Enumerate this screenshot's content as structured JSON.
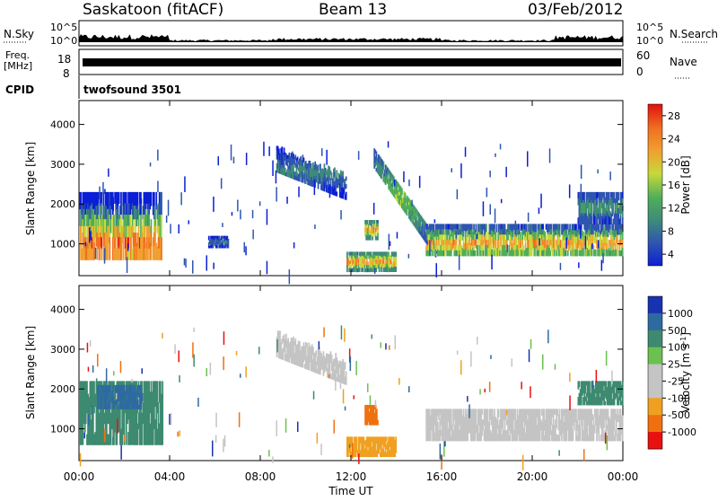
{
  "header": {
    "station": "Saskatoon (fitACF)",
    "beam": "Beam 13",
    "date": "03/Feb/2012"
  },
  "top_panels": {
    "nsky_label": "N.Sky",
    "nsky_ticks": [
      "10^5",
      "10^0"
    ],
    "nsearch_label": "N.Search",
    "freq_label_line1": "Freq.",
    "freq_label_line2": "[MHz]",
    "freq_ticks": [
      "18",
      "8"
    ],
    "nave_label": "Nave",
    "nave_ticks": [
      "60",
      "0"
    ],
    "cpid_label": "CPID",
    "cpid_value": "twofsound 3501"
  },
  "chart_data": [
    {
      "type": "heatmap",
      "name": "power",
      "ylabel": "Slant Range [km]",
      "xlabel": "Time UT",
      "x_ticks": [
        "00:00",
        "04:00",
        "08:00",
        "12:00",
        "16:00",
        "20:00",
        "00:00"
      ],
      "y_ticks": [
        "1000",
        "2000",
        "3000",
        "4000"
      ],
      "xlim_hours": [
        0,
        24
      ],
      "ylim_km": [
        200,
        4600
      ],
      "colorbar": {
        "label": "Power [dB]",
        "ticks": [
          "28",
          "24",
          "20",
          "16",
          "12",
          "8",
          "4"
        ]
      },
      "features": [
        {
          "t0": 0.0,
          "t1": 3.7,
          "r0": 600,
          "r1": 2300,
          "peak_dB": 28,
          "peak_range_km": 1000
        },
        {
          "t0": 5.7,
          "t1": 6.6,
          "r0": 900,
          "r1": 1200,
          "peak_dB": 8
        },
        {
          "t0": 8.7,
          "t1": 11.8,
          "r0": 2300,
          "r1": 3300,
          "peak_dB": 10
        },
        {
          "t0": 11.8,
          "t1": 14.0,
          "r0": 300,
          "r1": 800,
          "peak_dB": 24
        },
        {
          "t0": 12.6,
          "t1": 13.2,
          "r0": 1100,
          "r1": 1600,
          "peak_dB": 24
        },
        {
          "t0": 13.0,
          "t1": 15.8,
          "r0": 900,
          "r1": 3400,
          "peak_dB": 16
        },
        {
          "t0": 15.3,
          "t1": 24.0,
          "r0": 700,
          "r1": 1500,
          "peak_dB": 24,
          "peak_range_km": 1000
        },
        {
          "t0": 22.0,
          "t1": 24.0,
          "r0": 1500,
          "r1": 2300,
          "peak_dB": 12
        }
      ]
    },
    {
      "type": "heatmap",
      "name": "velocity",
      "ylabel": "Slant Range [km]",
      "xlabel": "Time UT",
      "x_ticks": [
        "00:00",
        "04:00",
        "08:00",
        "12:00",
        "16:00",
        "20:00",
        "00:00"
      ],
      "y_ticks": [
        "1000",
        "2000",
        "3000",
        "4000"
      ],
      "xlim_hours": [
        0,
        24
      ],
      "ylim_km": [
        200,
        4600
      ],
      "colorbar": {
        "label_main": "Velocity [m s",
        "label_sup": "-1",
        "label_end": "]",
        "ticks": [
          "1000",
          "500",
          "100",
          "25",
          "-25",
          "-100",
          "-500",
          "-1000"
        ]
      },
      "features": [
        {
          "t0": 0.0,
          "t1": 3.7,
          "r0": 600,
          "r1": 2200,
          "velocity": "100 to 500"
        },
        {
          "t0": 0.8,
          "t1": 2.8,
          "r0": 1500,
          "r1": 2100,
          "velocity": "500 to 1000"
        },
        {
          "t0": 8.7,
          "t1": 11.8,
          "r0": 2300,
          "r1": 3300,
          "velocity": "-25 to 25"
        },
        {
          "t0": 11.8,
          "t1": 14.0,
          "r0": 300,
          "r1": 800,
          "velocity": "-100"
        },
        {
          "t0": 12.6,
          "t1": 13.2,
          "r0": 1100,
          "r1": 1600,
          "velocity": "-500"
        },
        {
          "t0": 15.3,
          "t1": 24.0,
          "r0": 700,
          "r1": 1500,
          "velocity": "-25 to 25"
        },
        {
          "t0": 22.0,
          "t1": 24.0,
          "r0": 1600,
          "r1": 2200,
          "velocity": "100 to 500"
        }
      ]
    }
  ],
  "colors": {
    "power_scale": [
      "#0b1fd6",
      "#2e55b0",
      "#3f8a7a",
      "#4fae5a",
      "#c6d93a",
      "#f0a030",
      "#f07020",
      "#e01010"
    ],
    "velocity_scale": [
      "#1832b0",
      "#2e6aa0",
      "#3d8a70",
      "#6cc050",
      "#c4c4c4",
      "#c4c4c4",
      "#f0a020",
      "#f07010",
      "#e81010"
    ]
  }
}
